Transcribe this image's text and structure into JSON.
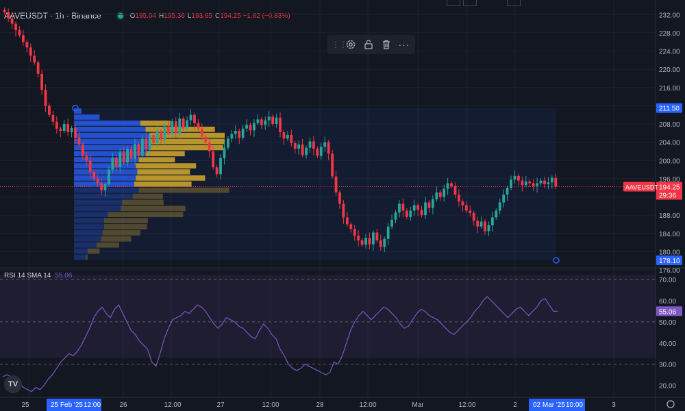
{
  "header": {
    "symbol": "AAVEUSDT · 1h · Binance",
    "o_label": "O",
    "o_value": "195.04",
    "h_label": "H",
    "h_value": "195.36",
    "l_label": "L",
    "l_value": "193.65",
    "c_label": "C",
    "c_value": "194.25 −1.62 (−0.83%)"
  },
  "toolbar": {
    "items": [
      "settings-icon",
      "lock-icon",
      "trash-icon",
      "more-icon"
    ],
    "more_label": "···"
  },
  "price_axis": {
    "ticks": [
      "232.00",
      "228.00",
      "224.00",
      "220.00",
      "216.00",
      "212.00",
      "208.00",
      "204.00",
      "200.00",
      "196.00",
      "192.00",
      "188.00",
      "184.00",
      "180.00",
      "176.00"
    ],
    "top_badge": "211.50",
    "bottom_badge": "178.10",
    "symbol_tag": "AAVEUSDT",
    "last_price": "194.25",
    "countdown": "29:36"
  },
  "rsi": {
    "label": "RSI 14 SMA 14",
    "value": "55.06",
    "ticks": [
      "70.00",
      "60.00",
      "50.00",
      "40.00",
      "30.00",
      "20.00"
    ]
  },
  "time_axis": {
    "labels": [
      "25",
      "26",
      "12:00",
      "27",
      "12:00",
      "28",
      "12:00",
      "Mar",
      "12:00",
      "2",
      "3"
    ],
    "highlight_left_date": "25 Feb '25",
    "highlight_left_time": "12:00",
    "highlight_right_date": "02 Mar '25",
    "highlight_right_time": "10:00"
  },
  "logo_text": "TV",
  "colors": {
    "up": "#26a69a",
    "down": "#f23645",
    "rsi": "#7e57c2",
    "vp_up": "#2962ff",
    "vp_down": "#d4a92c",
    "bg": "#131722"
  },
  "chart_data": {
    "type": "candlestick",
    "symbol": "AAVEUSDT",
    "interval": "1h",
    "ylim": [
      176,
      234
    ],
    "rsi_levels": [
      30,
      50,
      70
    ],
    "rsi_ylim": [
      14,
      72
    ],
    "profile_range": [
      178.1,
      211.5
    ],
    "last": 194.25,
    "closes": [
      232.5,
      231.2,
      230.0,
      228.6,
      227.5,
      226.0,
      224.8,
      223.0,
      221.5,
      219.0,
      215.5,
      212.0,
      210.0,
      208.5,
      207.0,
      206.5,
      208.0,
      206.2,
      207.1,
      205.0,
      203.5,
      201.0,
      200.0,
      197.5,
      196.0,
      195.0,
      193.5,
      194.8,
      198.0,
      200.5,
      198.6,
      201.8,
      199.5,
      202.5,
      200.4,
      203.6,
      201.0,
      204.8,
      202.5,
      205.6,
      203.8,
      206.5,
      204.6,
      207.5,
      205.8,
      208.6,
      206.0,
      209.2,
      207.0,
      208.8,
      210.0,
      208.2,
      207.0,
      205.2,
      204.0,
      202.0,
      198.5,
      197.0,
      200.5,
      202.8,
      204.8,
      205.8,
      206.5,
      205.0,
      207.0,
      207.8,
      206.6,
      208.2,
      209.0,
      207.8,
      208.8,
      209.6,
      208.0,
      209.4,
      206.2,
      204.8,
      205.6,
      203.8,
      202.6,
      203.5,
      201.2,
      202.8,
      204.2,
      202.6,
      201.0,
      203.0,
      204.0,
      201.5,
      196.5,
      193.0,
      190.5,
      187.5,
      186.0,
      185.0,
      183.5,
      182.5,
      181.5,
      183.0,
      181.6,
      184.2,
      182.5,
      181.0,
      182.8,
      185.5,
      187.0,
      188.6,
      190.5,
      189.0,
      187.6,
      189.0,
      190.2,
      189.2,
      188.0,
      190.8,
      189.6,
      191.5,
      193.0,
      192.0,
      193.8,
      195.0,
      194.4,
      192.5,
      191.0,
      190.2,
      189.0,
      188.5,
      186.8,
      185.5,
      186.6,
      184.5,
      185.8,
      187.5,
      189.0,
      190.8,
      192.5,
      194.0,
      195.8,
      196.6,
      195.6,
      194.6,
      195.4,
      195.0,
      194.4,
      195.0,
      195.6,
      194.8,
      195.2,
      196.2,
      194.25
    ],
    "rsi": [
      24,
      25,
      24,
      23,
      21,
      19,
      18,
      17,
      19,
      18,
      20,
      23,
      25,
      28,
      31,
      33,
      35,
      34,
      36,
      39,
      43,
      47,
      52,
      55,
      57,
      54,
      52,
      56,
      58,
      54,
      50,
      46,
      44,
      41,
      39,
      37,
      31,
      29,
      35,
      42,
      47,
      51,
      52,
      53,
      55,
      54,
      56,
      58,
      57,
      55,
      52,
      49,
      47,
      49,
      52,
      51,
      50,
      48,
      47,
      45,
      43,
      42,
      46,
      49,
      47,
      44,
      42,
      37,
      34,
      30,
      28,
      27,
      28,
      30,
      29,
      28,
      27,
      26,
      25,
      26,
      31,
      30,
      34,
      40,
      46,
      50,
      53,
      55,
      53,
      51,
      53,
      55,
      57,
      56,
      54,
      52,
      49,
      47,
      48,
      51,
      54,
      56,
      55,
      53,
      52,
      51,
      49,
      47,
      45,
      44,
      46,
      48,
      50,
      52,
      55,
      57,
      60,
      62,
      60,
      58,
      56,
      54,
      52,
      54,
      56,
      57,
      55,
      53,
      55,
      57,
      60,
      61,
      58,
      55,
      55.06
    ],
    "volume_profile": [
      {
        "up": 10,
        "down": 0
      },
      {
        "up": 34,
        "down": 0
      },
      {
        "up": 88,
        "down": 40
      },
      {
        "up": 95,
        "down": 92
      },
      {
        "up": 100,
        "down": 100
      },
      {
        "up": 100,
        "down": 100
      },
      {
        "up": 100,
        "down": 98
      },
      {
        "up": 95,
        "down": 52
      },
      {
        "up": 86,
        "down": 48
      },
      {
        "up": 82,
        "down": 80
      },
      {
        "up": 84,
        "down": 70
      },
      {
        "up": 82,
        "down": 92
      },
      {
        "up": 80,
        "down": 76
      },
      {
        "up": 86,
        "down": 120
      },
      {
        "up": 78,
        "down": 40
      },
      {
        "up": 64,
        "down": 55
      },
      {
        "up": 62,
        "down": 86
      },
      {
        "up": 45,
        "down": 100
      },
      {
        "up": 40,
        "down": 58
      },
      {
        "up": 40,
        "down": 57
      },
      {
        "up": 38,
        "down": 50
      },
      {
        "up": 36,
        "down": 40
      },
      {
        "up": 30,
        "down": 30
      },
      {
        "up": 18,
        "down": 16
      },
      {
        "up": 16,
        "down": 2
      }
    ]
  }
}
